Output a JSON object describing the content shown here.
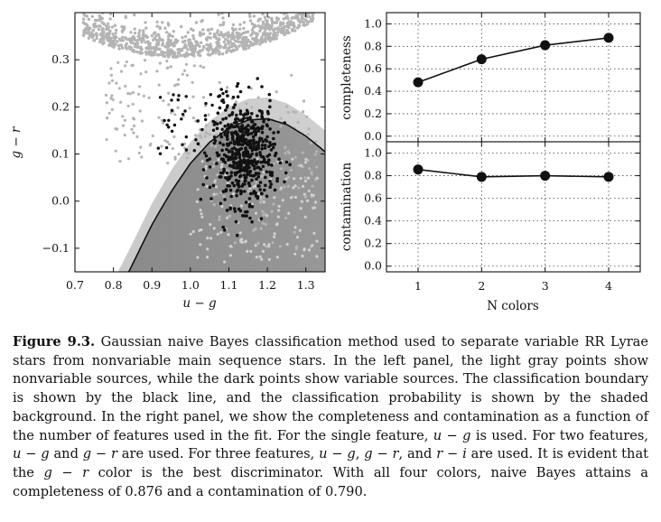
{
  "chart_data": [
    {
      "type": "scatter",
      "title": "",
      "xlabel": "u − g",
      "ylabel": "g − r",
      "xlim": [
        0.7,
        1.35
      ],
      "ylim": [
        -0.15,
        0.4
      ],
      "xticks": [
        "0.7",
        "0.8",
        "0.9",
        "1.0",
        "1.1",
        "1.2",
        "1.3"
      ],
      "yticks": [
        "−0.1",
        "0.0",
        "0.1",
        "0.2",
        "0.3"
      ],
      "background": "classification probability (shaded)",
      "boundary": {
        "description": "classification boundary (black line)",
        "points": [
          [
            0.84,
            -0.15
          ],
          [
            0.9,
            -0.05
          ],
          [
            0.95,
            0.02
          ],
          [
            1.0,
            0.08
          ],
          [
            1.05,
            0.125
          ],
          [
            1.1,
            0.155
          ],
          [
            1.15,
            0.172
          ],
          [
            1.2,
            0.175
          ],
          [
            1.25,
            0.163
          ],
          [
            1.3,
            0.138
          ],
          [
            1.35,
            0.105
          ]
        ]
      },
      "series": [
        {
          "description": "nonvariable sources (light gray points)",
          "color": "#b4b4b4"
        },
        {
          "description": "variable sources (dark points)",
          "color": "#111111"
        }
      ]
    },
    {
      "type": "line",
      "title": "",
      "xlabel": "",
      "ylabel": "completeness",
      "x": [
        1,
        2,
        3,
        4
      ],
      "values": [
        0.48,
        0.685,
        0.81,
        0.876
      ],
      "ylim": [
        -0.05,
        1.1
      ],
      "yticks": [
        "0.0",
        "0.2",
        "0.4",
        "0.6",
        "0.8",
        "1.0"
      ],
      "grid": true
    },
    {
      "type": "line",
      "title": "",
      "xlabel": "N colors",
      "ylabel": "contamination",
      "x": [
        1,
        2,
        3,
        4
      ],
      "xticks": [
        "1",
        "2",
        "3",
        "4"
      ],
      "values": [
        0.855,
        0.79,
        0.8,
        0.79
      ],
      "ylim": [
        -0.05,
        1.1
      ],
      "yticks": [
        "0.0",
        "0.2",
        "0.4",
        "0.6",
        "0.8",
        "1.0"
      ],
      "grid": true
    }
  ],
  "caption": {
    "label": "Figure 9.3.",
    "parts": [
      {
        "t": "Gaussian naive Bayes classification method used to separate variable RR Lyrae stars from nonvariable main sequence stars. In the left panel, the light gray points show nonvariable sources, while the dark points show variable sources. The classification boundary is shown by the black line, and the classification probability is shown by the shaded background. In the right panel, we show the completeness and contamination as a function of the number of features used in the fit. For the single feature, "
      },
      {
        "t": "u − g",
        "i": true
      },
      {
        "t": " is used. For two features, "
      },
      {
        "t": "u − g",
        "i": true
      },
      {
        "t": " and "
      },
      {
        "t": "g − r",
        "i": true
      },
      {
        "t": " are used. For three features, "
      },
      {
        "t": "u − g",
        "i": true
      },
      {
        "t": ", "
      },
      {
        "t": "g − r",
        "i": true
      },
      {
        "t": ", and "
      },
      {
        "t": "r − i",
        "i": true
      },
      {
        "t": " are used. It is evident that the "
      },
      {
        "t": "g − r",
        "i": true
      },
      {
        "t": " color is the best discriminator. With all four colors, naive Bayes attains a completeness of 0.876 and a contamination of 0.790."
      }
    ]
  }
}
